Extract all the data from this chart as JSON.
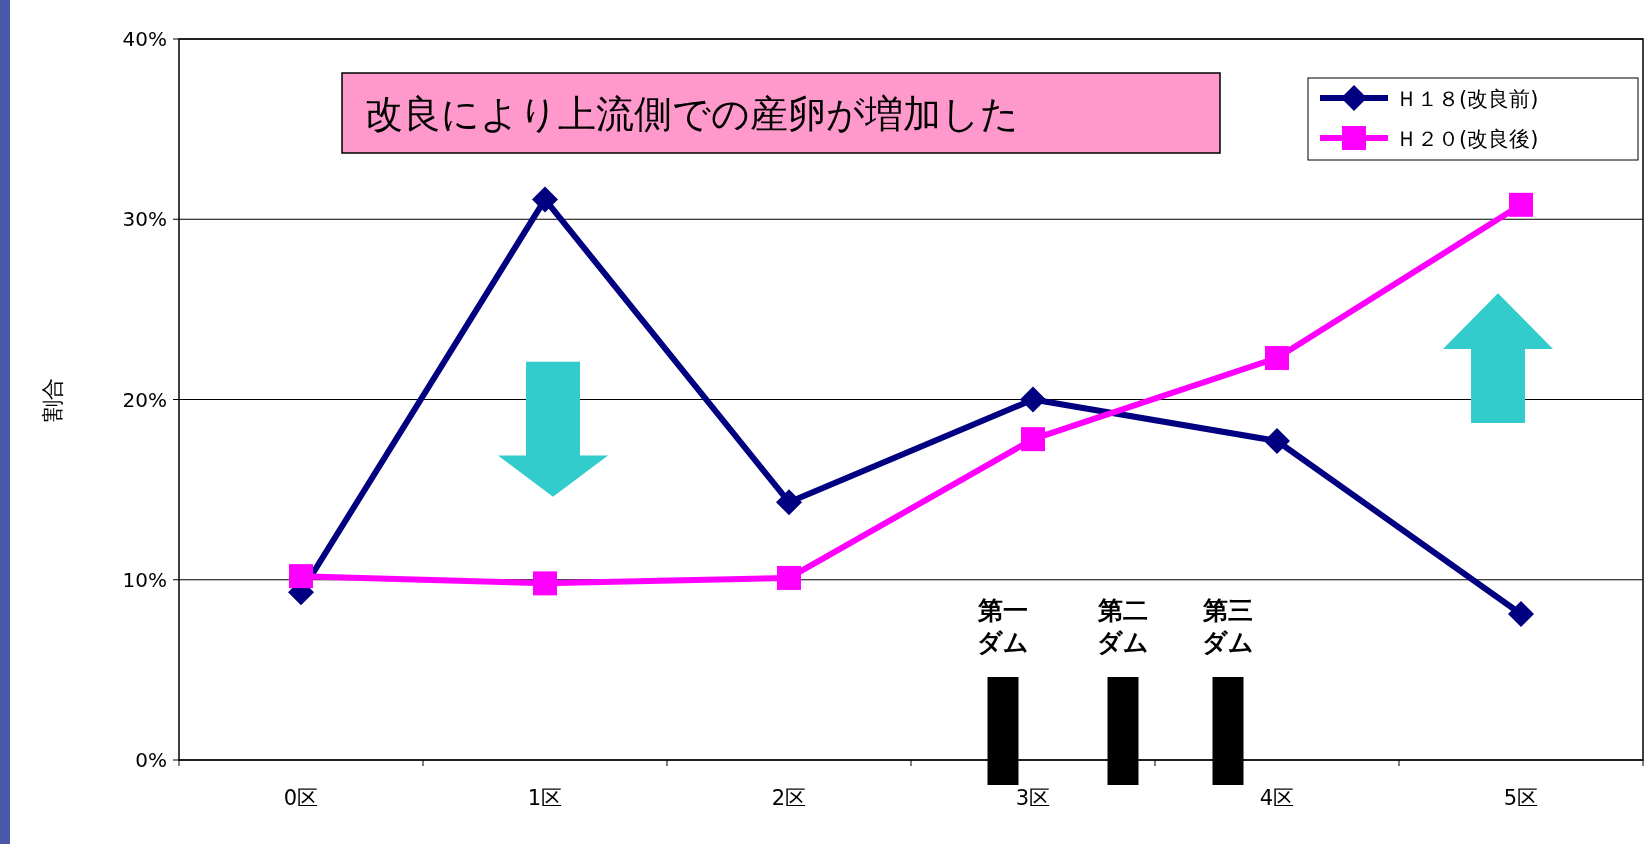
{
  "chart_data": {
    "type": "line",
    "ylabel": "割合",
    "categories": [
      "0区",
      "1区",
      "2区",
      "3区",
      "4区",
      "5区"
    ],
    "series": [
      {
        "name": "Ｈ１８(改良前)",
        "color": "#000080",
        "marker": "diamond",
        "values": [
          9.3,
          31.1,
          14.3,
          20.0,
          17.7,
          8.1
        ]
      },
      {
        "name": "Ｈ２０(改良後)",
        "color": "#ff00ff",
        "marker": "square",
        "values": [
          10.2,
          9.8,
          10.1,
          17.8,
          22.3,
          30.8
        ]
      }
    ],
    "ylim": [
      0,
      40
    ],
    "yticks": [
      {
        "value": 0,
        "label": "0%"
      },
      {
        "value": 10,
        "label": "10%"
      },
      {
        "value": 20,
        "label": "20%"
      },
      {
        "value": 30,
        "label": "30%"
      },
      {
        "value": 40,
        "label": "40%"
      }
    ],
    "grid": "y",
    "legend": "top right",
    "annotations": [
      "改良により上流側での産卵が増加した",
      "第一ダム",
      "第二ダム",
      "第三ダム"
    ]
  }
}
